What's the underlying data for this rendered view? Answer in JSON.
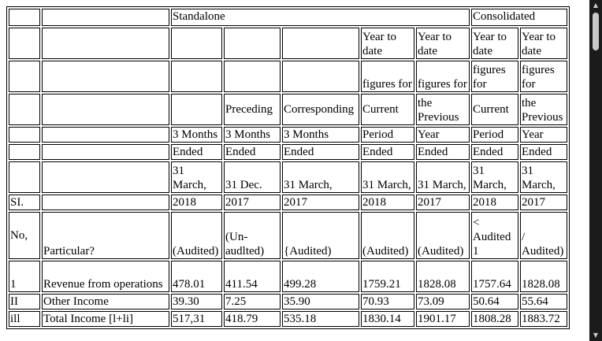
{
  "table": {
    "rows": [
      [
        "",
        "",
        "Standalone",
        "Consolidated"
      ],
      [
        "",
        "",
        "",
        "",
        "",
        "Year to date",
        "Year to date",
        "Year to date",
        "Year to date"
      ],
      [
        "",
        "",
        "",
        "",
        "",
        "figures for",
        "figures for",
        "figures for",
        "figures for"
      ],
      [
        "",
        "",
        "",
        "Preceding",
        "Corresponding",
        "Current",
        "the Previous",
        "Current",
        "the Previous"
      ],
      [
        "",
        "",
        "3 Months",
        "3 Months",
        "3 Months",
        "Period",
        "Year",
        "Period",
        "Year"
      ],
      [
        "",
        "",
        "Ended",
        "Ended",
        "Ended",
        "Ended",
        "Ended",
        "Ended",
        "Ended"
      ],
      [
        "",
        "",
        "31 March,",
        "31 Dec.",
        "31 March,",
        "31 March,",
        "31 March,",
        "31 March,",
        "31 March,"
      ],
      [
        "SI.",
        "",
        "2018",
        "2017",
        "2017",
        "2018",
        "2017",
        "2018",
        "2017"
      ],
      [
        "No,",
        "Particular?",
        "(Audited)",
        "(Un-audlted)",
        "{Audited)",
        "(Audited)",
        "(Audited)",
        "< Audited 1",
        "/ Audited)"
      ],
      [
        "1",
        "Revenue from operations",
        "478.01",
        "411.54",
        "499.28",
        "1759.21",
        "1828.08",
        "1757.64",
        "1828.08"
      ],
      [
        "II",
        "Other Income",
        "39.30",
        "7.25",
        "35.90",
        "70.93",
        "73.09",
        "50.64",
        "55.64"
      ],
      [
        "ill",
        "Total Income [l+li]",
        "517,31",
        "418.79",
        "535.18",
        "1830.14",
        "1901.17",
        "1808.28",
        "1883.72"
      ]
    ]
  },
  "scrollbar": {
    "up_icon": "triangle-up",
    "down_icon": "triangle-down",
    "position": 0.0
  }
}
